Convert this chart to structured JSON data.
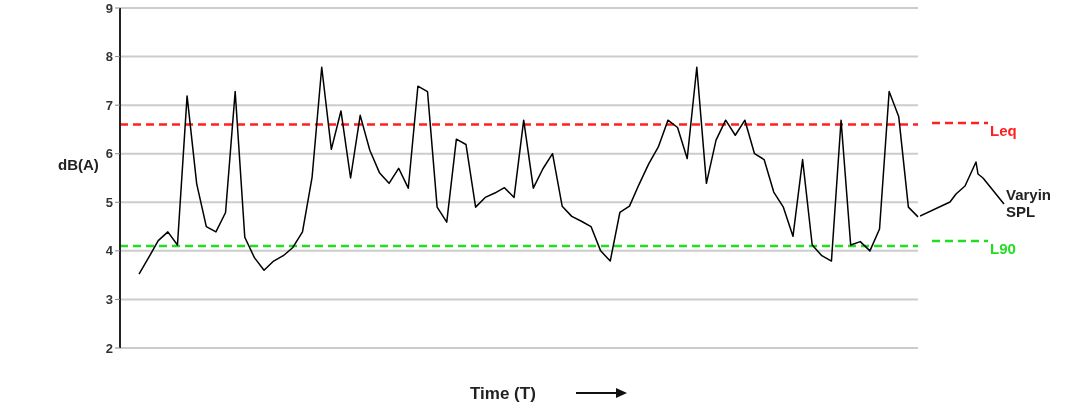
{
  "chart_data": {
    "type": "line",
    "xlabel": "Time (T)",
    "ylabel": "dB(A)",
    "categories": [
      null,
      null,
      null,
      null,
      null,
      null,
      null,
      null,
      null,
      null,
      null,
      null,
      null,
      null,
      null,
      null,
      null,
      null,
      null,
      null,
      null,
      null,
      null,
      null,
      null,
      null,
      null,
      null,
      null,
      null,
      null,
      null,
      null,
      null,
      null,
      null,
      null,
      null,
      null,
      null,
      null,
      null,
      null,
      null,
      null,
      null,
      null,
      null,
      null,
      null,
      null,
      null,
      null,
      null,
      null,
      null,
      null,
      null,
      null,
      null,
      null,
      null,
      null,
      null,
      null,
      null,
      null,
      null,
      null,
      null,
      null,
      null,
      null,
      null,
      null,
      null,
      null,
      null,
      null,
      null,
      null,
      null
    ],
    "series": [
      {
        "name": "Varyin SPL",
        "color": "#000000",
        "values": [
          3.52,
          3.86,
          4.21,
          4.39,
          4.12,
          7.19,
          5.38,
          4.5,
          4.39,
          4.79,
          7.28,
          4.28,
          3.86,
          3.6,
          3.79,
          3.9,
          4.07,
          4.39,
          5.52,
          7.78,
          6.09,
          6.88,
          5.5,
          6.79,
          6.07,
          5.61,
          5.39,
          5.7,
          5.29,
          7.39,
          7.28,
          4.9,
          4.59,
          6.3,
          6.19,
          4.9,
          5.1,
          5.19,
          5.3,
          5.1,
          6.69,
          5.29,
          5.69,
          6.0,
          4.92,
          4.71,
          4.61,
          4.5,
          4.0,
          3.79,
          4.79,
          4.92,
          5.37,
          5.79,
          6.14,
          6.69,
          6.54,
          5.9,
          7.78,
          5.39,
          6.28,
          6.69,
          6.38,
          6.69,
          6.0,
          5.88,
          5.21,
          4.9,
          4.3,
          5.88,
          4.12,
          3.9,
          3.79,
          6.69,
          4.12,
          4.19,
          4.0,
          4.45,
          7.28,
          6.76,
          4.9,
          4.7
        ]
      }
    ],
    "ylim": [
      2,
      9
    ],
    "yticks": [
      2,
      3,
      4,
      5,
      6,
      7,
      8,
      9
    ],
    "grid": "y",
    "legend": "right",
    "tick_labels": "y",
    "marker": "none",
    "line_style": "solid",
    "ref_lines": [
      {
        "axis": "y",
        "value": 6.6,
        "label": "Leq",
        "color": "#ff2020",
        "line_style": "dashed"
      },
      {
        "axis": "y",
        "value": 4.1,
        "label": "L90",
        "color": "#22dd22",
        "line_style": "dashed"
      }
    ]
  }
}
